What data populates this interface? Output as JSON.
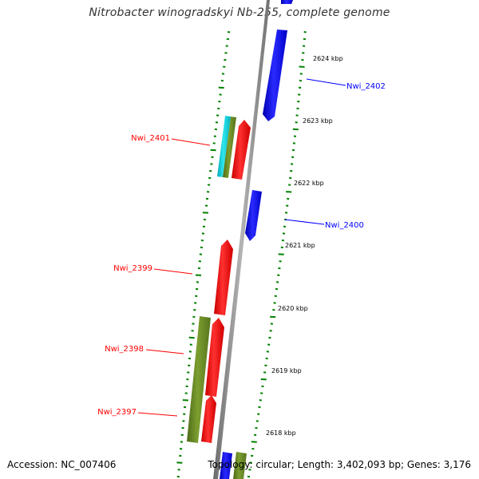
{
  "title": "Nitrobacter winogradskyi Nb-255, complete genome",
  "accession": "Accession: NC_007406",
  "topology": "Topology: circular; Length: 3,402,093 bp; Genes: 3,176",
  "colors": {
    "forward": "#0000ff",
    "reverse": "#ff0000",
    "olive": "#6b8e23",
    "cyan": "#00c8d2",
    "tick": "#008000",
    "backbone": "#808080"
  },
  "scale_labels": [
    "2624 kbp",
    "2623 kbp",
    "2622 kbp",
    "2621 kbp",
    "2620 kbp",
    "2619 kbp",
    "2618 kbp"
  ],
  "gene_labels": [
    {
      "text": "Nwi_2402",
      "strand": "forward"
    },
    {
      "text": "Nwi_2401",
      "strand": "reverse"
    },
    {
      "text": "Nwi_2400",
      "strand": "forward"
    },
    {
      "text": "Nwi_2399",
      "strand": "reverse"
    },
    {
      "text": "Nwi_2398",
      "strand": "reverse"
    },
    {
      "text": "Nwi_2397",
      "strand": "reverse"
    }
  ],
  "features": [
    {
      "name": "forward-gene-top",
      "strand": "forward",
      "kind": "gene"
    },
    {
      "name": "forward-gene-nwi-2402",
      "strand": "forward",
      "kind": "gene"
    },
    {
      "name": "forward-gene-nwi-2400",
      "strand": "forward",
      "kind": "gene"
    },
    {
      "name": "forward-gene-bottom",
      "strand": "forward",
      "kind": "gene"
    },
    {
      "name": "olive-feature-bottom",
      "strand": "forward",
      "kind": "other"
    },
    {
      "name": "cyan-feature-nwi-2401",
      "strand": "reverse",
      "kind": "rna"
    },
    {
      "name": "olive-feature-nwi-2401",
      "strand": "reverse",
      "kind": "other"
    },
    {
      "name": "reverse-gene-nwi-2401",
      "strand": "reverse",
      "kind": "gene"
    },
    {
      "name": "reverse-gene-nwi-2399",
      "strand": "reverse",
      "kind": "gene"
    },
    {
      "name": "olive-feature-nwi-2398",
      "strand": "reverse",
      "kind": "other"
    },
    {
      "name": "reverse-gene-nwi-2398",
      "strand": "reverse",
      "kind": "gene"
    },
    {
      "name": "reverse-gene-nwi-2397",
      "strand": "reverse",
      "kind": "gene"
    }
  ]
}
